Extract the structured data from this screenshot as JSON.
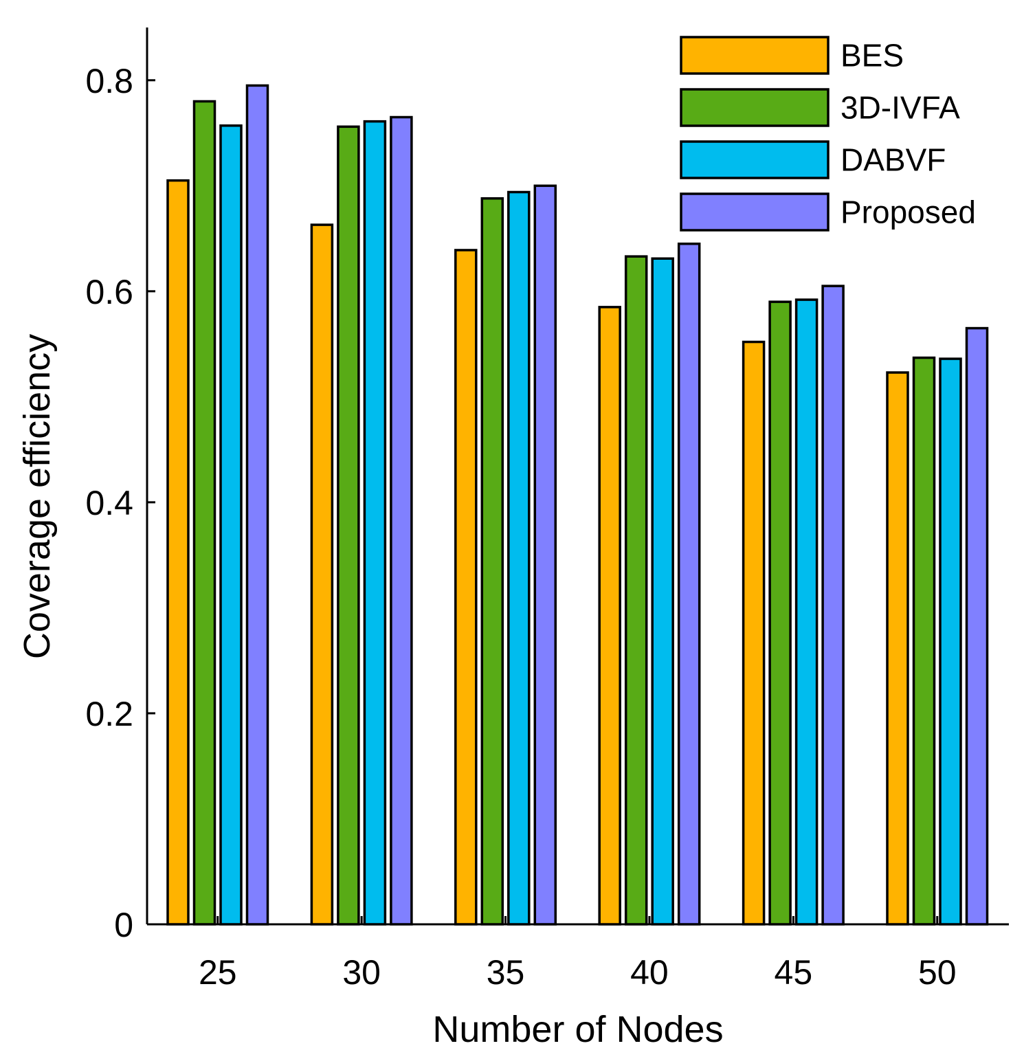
{
  "chart_data": {
    "type": "bar",
    "title": "",
    "xlabel": "Number of Nodes",
    "ylabel": "Coverage efficiency",
    "categories": [
      "25",
      "30",
      "35",
      "40",
      "45",
      "50"
    ],
    "ylim": [
      0,
      0.85
    ],
    "yticks": [
      {
        "value": 0,
        "label": "0"
      },
      {
        "value": 0.2,
        "label": "0.2"
      },
      {
        "value": 0.4,
        "label": "0.4"
      },
      {
        "value": 0.6,
        "label": "0.6"
      },
      {
        "value": 0.8,
        "label": "0.8"
      }
    ],
    "grid": false,
    "legend": "top-right",
    "series": [
      {
        "name": "BES",
        "color": "#FFB300",
        "values": [
          0.705,
          0.663,
          0.639,
          0.585,
          0.552,
          0.523
        ]
      },
      {
        "name": "3D-IVFA",
        "color": "#58AB16",
        "values": [
          0.78,
          0.756,
          0.688,
          0.633,
          0.59,
          0.537
        ]
      },
      {
        "name": "DABVF",
        "color": "#00BCEE",
        "values": [
          0.757,
          0.761,
          0.694,
          0.631,
          0.592,
          0.536
        ]
      },
      {
        "name": "Proposed",
        "color": "#8080FF",
        "values": [
          0.795,
          0.765,
          0.7,
          0.645,
          0.605,
          0.565
        ]
      }
    ]
  }
}
